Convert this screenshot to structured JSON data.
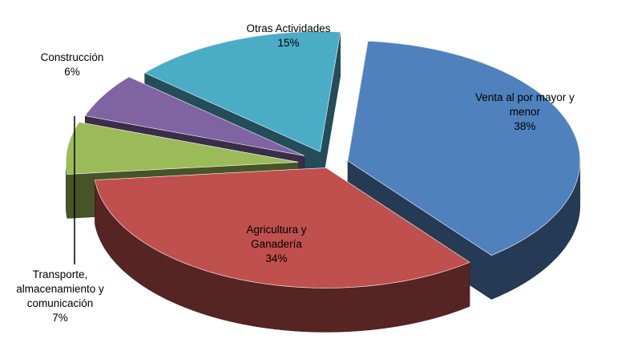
{
  "chart_data": {
    "type": "pie",
    "categories": [
      "Venta al por mayor y menor",
      "Agricultura y Ganadería",
      "Transporte, almacenamiento y comunicación",
      "Construcción",
      "Otras Actividades"
    ],
    "values": [
      38,
      34,
      7,
      6,
      15
    ],
    "value_labels": [
      "38%",
      "34%",
      "7%",
      "6%",
      "15%"
    ],
    "colors": [
      "#4f81bd",
      "#c0504d",
      "#9bbb59",
      "#8064a2",
      "#4bacc6"
    ]
  }
}
